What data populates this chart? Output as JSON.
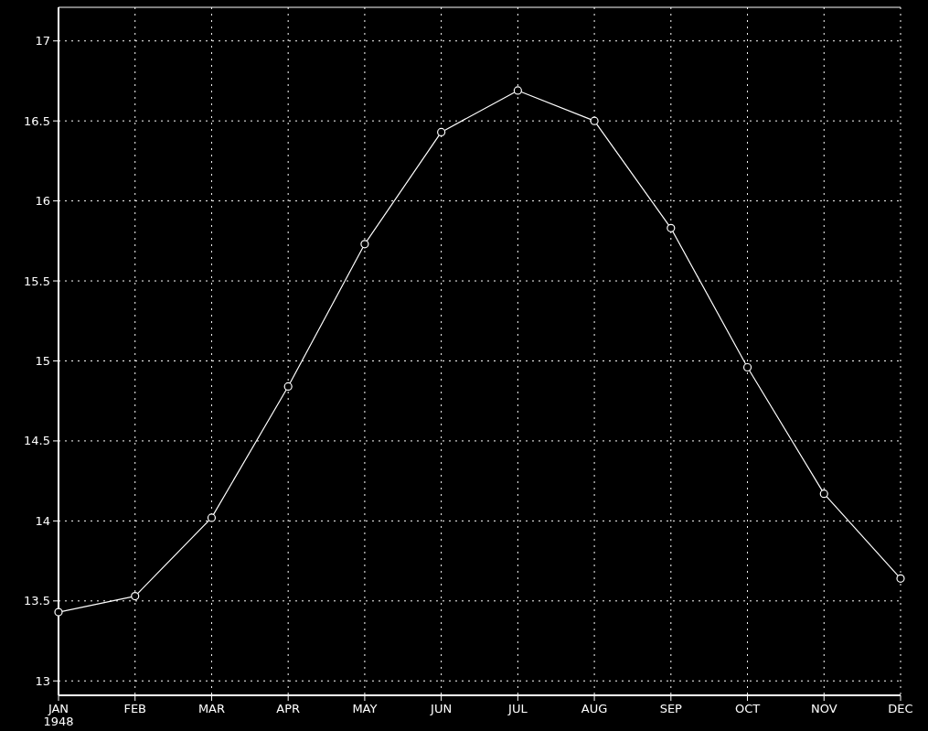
{
  "chart_data": {
    "type": "line",
    "categories": [
      "JAN",
      "FEB",
      "MAR",
      "APR",
      "MAY",
      "JUN",
      "JUL",
      "AUG",
      "SEP",
      "OCT",
      "NOV",
      "DEC"
    ],
    "series": [
      {
        "color": "#ffffff",
        "values": [
          13.43,
          13.53,
          14.02,
          14.84,
          15.73,
          16.43,
          16.69,
          16.5,
          15.83,
          14.96,
          14.17,
          13.64
        ]
      }
    ],
    "ylim": [
      12.91,
      17.21
    ],
    "yticks": [
      13,
      13.5,
      14,
      14.5,
      15,
      15.5,
      16,
      16.5,
      17
    ],
    "grid": true,
    "marker": "circle",
    "line_style": "solid",
    "annotations": [
      "1948"
    ]
  }
}
